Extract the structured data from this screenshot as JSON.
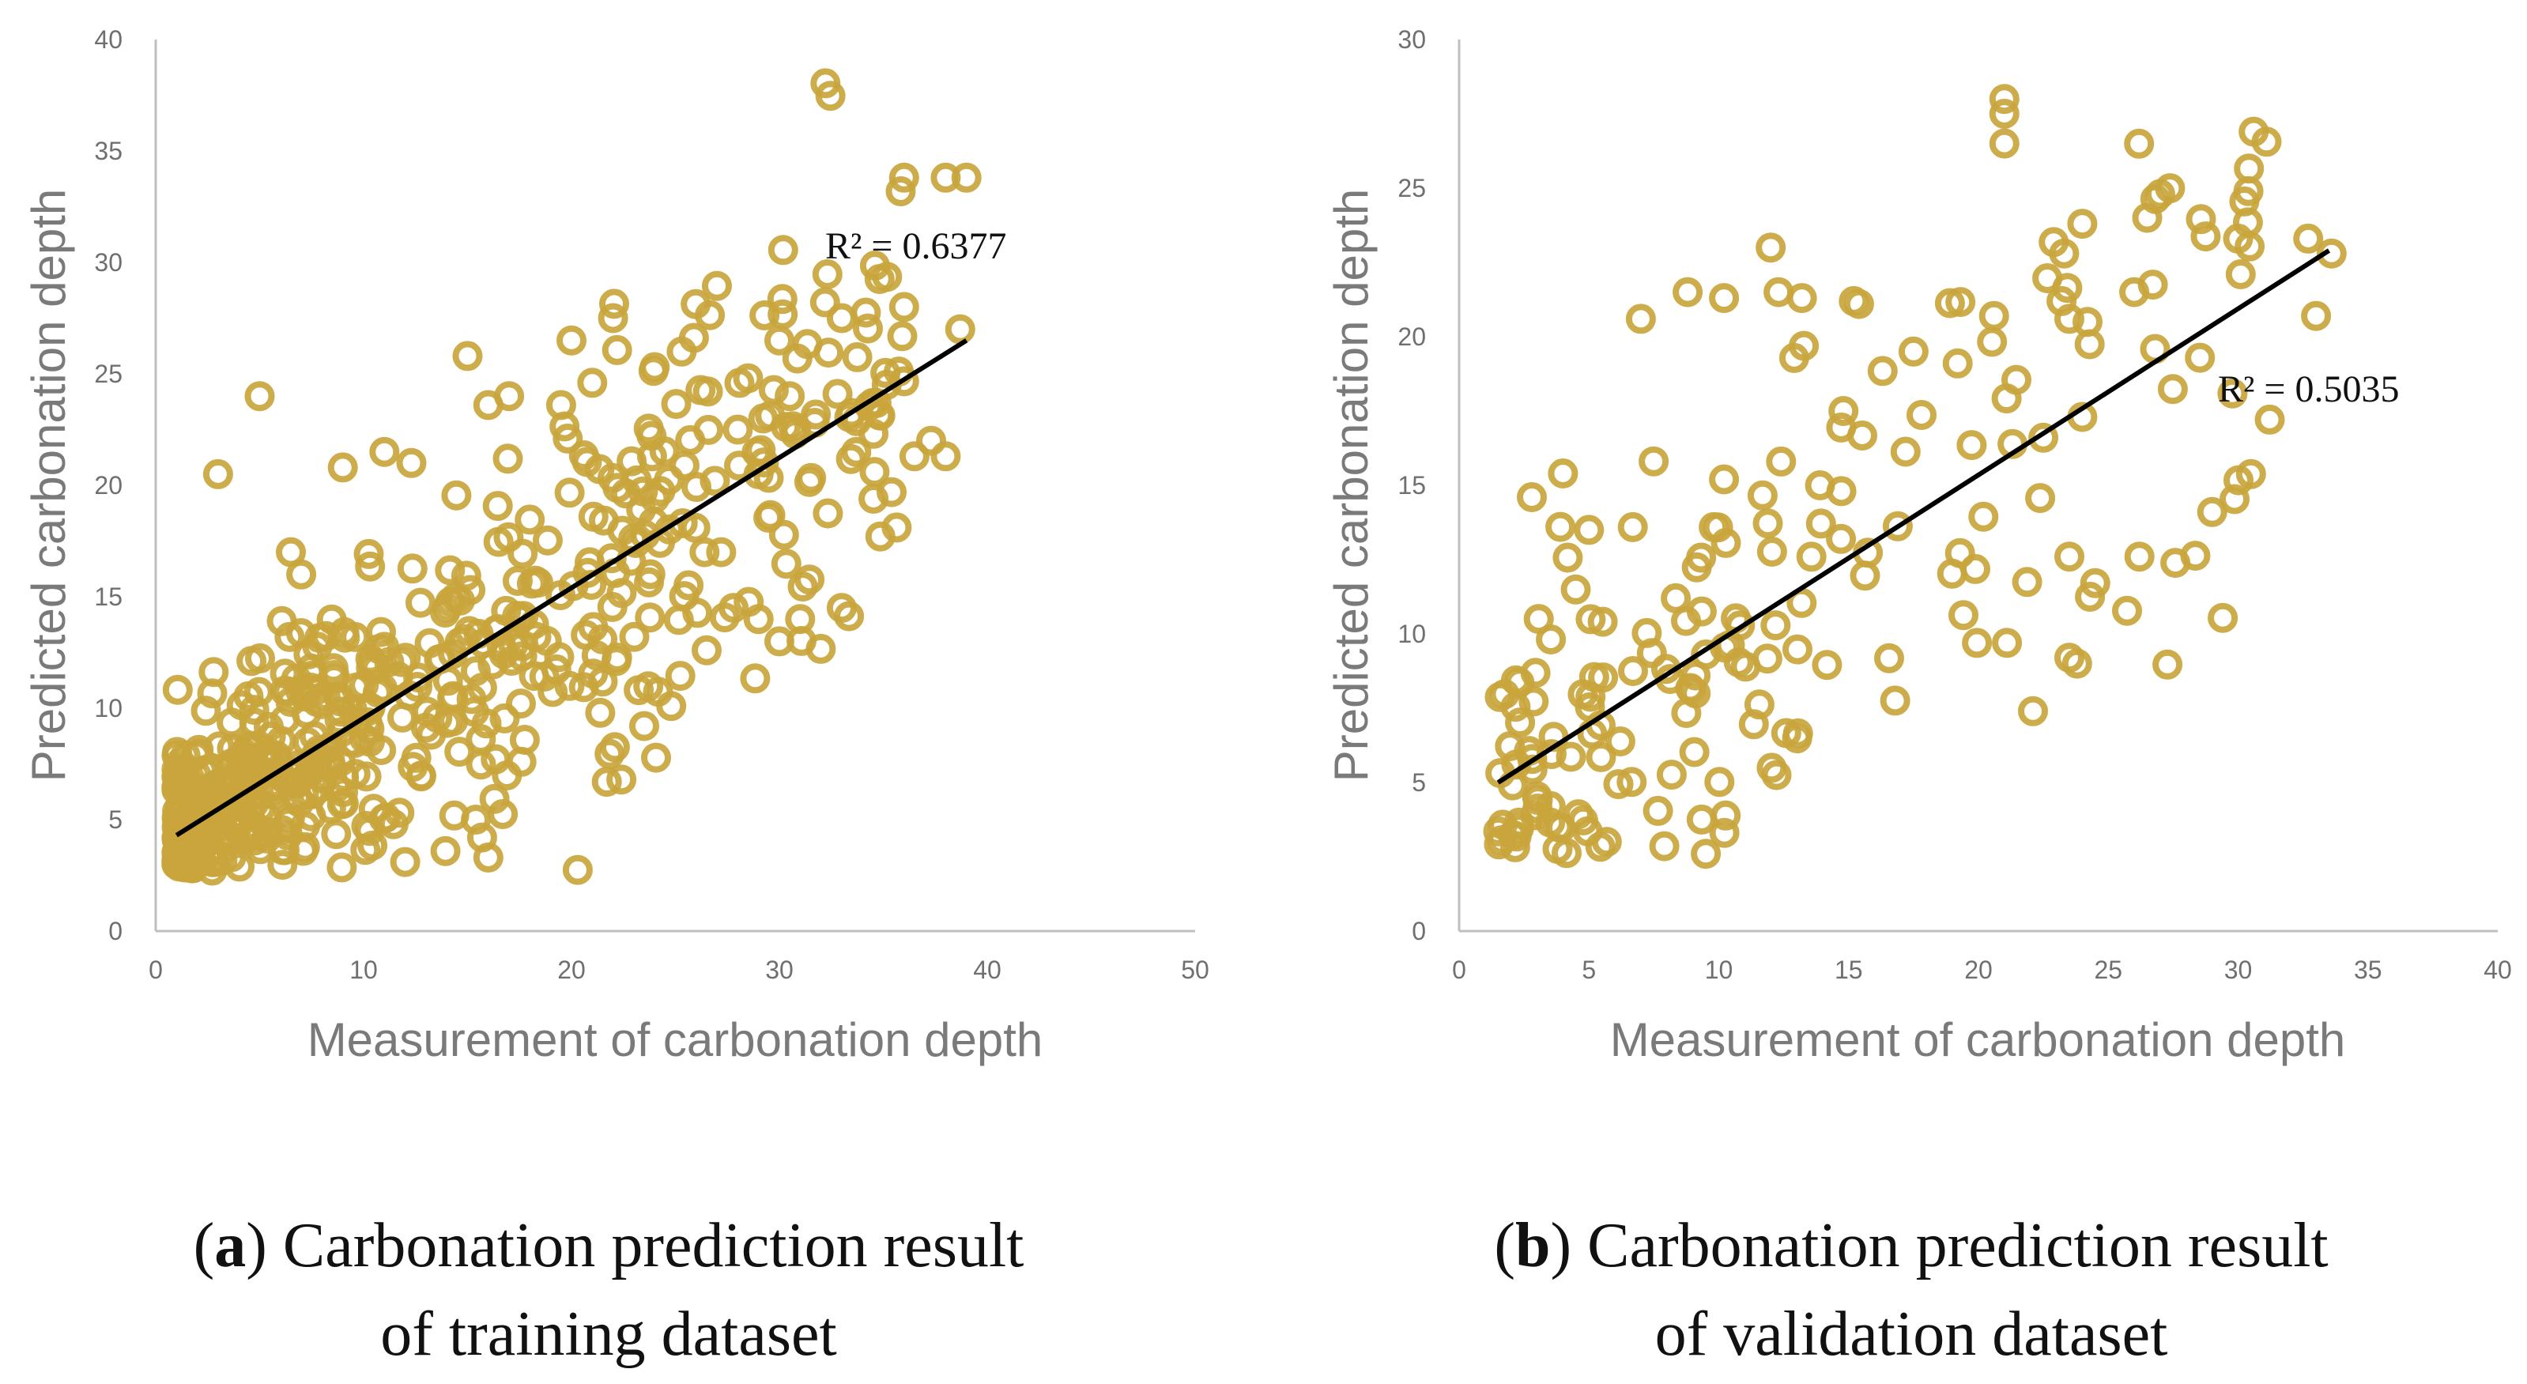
{
  "colors": {
    "marker": "#c9a53c",
    "trend": "#000000",
    "axis": "#bfbfbf",
    "text": "#6f6f6f"
  },
  "chart_data": [
    {
      "type": "scatter",
      "panel": "a",
      "title": "Carbonation prediction result of training dataset",
      "xlabel": "Measurement of carbonation depth",
      "ylabel": "Predicted carbonation depth",
      "xlim": [
        0,
        50
      ],
      "ylim": [
        0,
        40
      ],
      "xticks": [
        0,
        10,
        20,
        30,
        40,
        50
      ],
      "yticks": [
        0,
        5,
        10,
        15,
        20,
        25,
        30,
        35,
        40
      ],
      "r2_label": "R² = 0.6377",
      "trendline": {
        "x": [
          1,
          39
        ],
        "y": [
          4.3,
          26.5
        ]
      },
      "sample_count": 560,
      "outliers": [
        [
          5,
          24
        ],
        [
          3,
          20.5
        ],
        [
          9,
          20.8
        ],
        [
          11,
          21.5
        ],
        [
          12.3,
          21
        ],
        [
          15,
          25.8
        ],
        [
          20,
          26.5
        ],
        [
          22,
          27.5
        ],
        [
          30,
          26.5
        ],
        [
          33,
          27.5
        ],
        [
          36,
          28
        ],
        [
          36,
          33.8
        ],
        [
          38,
          33.8
        ],
        [
          39,
          33.8
        ],
        [
          38.7,
          27
        ],
        [
          37.3,
          22
        ],
        [
          38,
          21.3
        ],
        [
          36.5,
          21.3
        ],
        [
          34.5,
          23.7
        ],
        [
          33.7,
          21.5
        ],
        [
          33,
          14.5
        ],
        [
          31,
          14
        ],
        [
          30,
          13
        ],
        [
          29,
          14
        ],
        [
          27.8,
          14.5
        ],
        [
          26.5,
          12.6
        ],
        [
          27.2,
          17
        ],
        [
          26.4,
          17
        ],
        [
          16,
          3.3
        ],
        [
          15.7,
          4.2
        ],
        [
          15.4,
          5
        ],
        [
          7,
          16
        ],
        [
          6.5,
          17
        ],
        [
          12,
          3.1
        ],
        [
          24.8,
          10.1
        ],
        [
          22.4,
          6.8
        ],
        [
          21.7,
          6.7
        ],
        [
          21.5,
          11.2
        ],
        [
          23.5,
          9.2
        ],
        [
          28,
          22.5
        ],
        [
          29,
          20.5
        ],
        [
          30.5,
          24
        ],
        [
          31.7,
          22.8
        ],
        [
          32.8,
          24.1
        ],
        [
          28.5,
          24.8
        ],
        [
          24,
          25.3
        ],
        [
          25.3,
          26
        ],
        [
          21,
          24.6
        ],
        [
          19.5,
          23.6
        ],
        [
          17,
          24
        ],
        [
          16,
          23.6
        ]
      ]
    },
    {
      "type": "scatter",
      "panel": "b",
      "title": "Carbonation prediction result of validation dataset",
      "xlabel": "Measurement of carbonation depth",
      "ylabel": "Predicted carbonation depth",
      "xlim": [
        0,
        40
      ],
      "ylim": [
        0,
        30
      ],
      "xticks": [
        0,
        5,
        10,
        15,
        20,
        25,
        30,
        35,
        40
      ],
      "yticks": [
        0,
        5,
        10,
        15,
        20,
        25,
        30
      ],
      "r2_label": "R² = 0.5035",
      "trendline": {
        "x": [
          1.5,
          33.5
        ],
        "y": [
          5.0,
          22.9
        ]
      },
      "sample_count": 170,
      "outliers": [
        [
          21,
          28
        ],
        [
          21,
          27.5
        ],
        [
          21,
          26.5
        ],
        [
          30.6,
          26.9
        ],
        [
          30.4,
          24.9
        ],
        [
          27,
          24.8
        ],
        [
          26.5,
          24
        ],
        [
          24,
          23.8
        ],
        [
          23.3,
          22.8
        ],
        [
          30,
          23.3
        ],
        [
          32.7,
          23.3
        ],
        [
          33.6,
          22.8
        ],
        [
          30.1,
          22.1
        ],
        [
          12,
          23
        ],
        [
          8.8,
          21.5
        ],
        [
          10.2,
          21.3
        ],
        [
          12.3,
          21.5
        ],
        [
          13.2,
          21.3
        ],
        [
          15.2,
          21.2
        ],
        [
          15.4,
          21.1
        ],
        [
          7,
          20.6
        ],
        [
          20.6,
          20.7
        ],
        [
          23.2,
          21.2
        ],
        [
          23.5,
          20.6
        ],
        [
          24.2,
          20.5
        ],
        [
          26,
          21.5
        ],
        [
          33,
          20.7
        ],
        [
          17.5,
          19.5
        ],
        [
          19.2,
          19.1
        ],
        [
          14.8,
          17.5
        ],
        [
          24,
          17.3
        ],
        [
          22.5,
          16.6
        ],
        [
          29,
          14.1
        ],
        [
          26.2,
          12.6
        ],
        [
          23.5,
          12.6
        ],
        [
          23.5,
          9.2
        ],
        [
          23.8,
          9
        ],
        [
          22.1,
          7.4
        ],
        [
          21.1,
          9.7
        ],
        [
          9.5,
          2.6
        ],
        [
          2.8,
          14.6
        ],
        [
          4,
          15.4
        ],
        [
          3.9,
          13.6
        ],
        [
          5,
          13.5
        ],
        [
          10.2,
          15.2
        ],
        [
          12.4,
          15.8
        ],
        [
          13.9,
          15
        ]
      ]
    }
  ],
  "captions": [
    {
      "label": "a",
      "line1": "Carbonation prediction result",
      "line2": "of training dataset"
    },
    {
      "label": "b",
      "line1": "Carbonation prediction result",
      "line2": "of validation dataset"
    }
  ]
}
